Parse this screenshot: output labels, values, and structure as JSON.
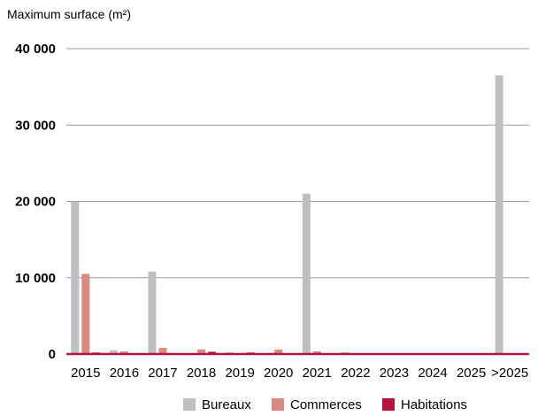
{
  "chart_data": {
    "type": "bar",
    "ylabel": "Maximum surface (m²)",
    "categories": [
      "2015",
      "2016",
      "2017",
      "2018",
      "2019",
      "2020",
      "2021",
      "2022",
      "2023",
      "2024",
      "2025",
      ">2025"
    ],
    "series": [
      {
        "name": "Bureaux",
        "color": "#bfbfc3",
        "values": [
          20000,
          500,
          10800,
          0,
          250,
          0,
          21000,
          250,
          0,
          0,
          0,
          36500
        ]
      },
      {
        "name": "Commerces",
        "color": "#d98a80",
        "values": [
          10500,
          350,
          800,
          600,
          0,
          600,
          350,
          0,
          0,
          0,
          0,
          0
        ]
      },
      {
        "name": "Habitations",
        "color": "#b5143c",
        "values": [
          200,
          0,
          0,
          300,
          200,
          0,
          0,
          0,
          0,
          0,
          0,
          0
        ]
      }
    ],
    "ylim": [
      0,
      40000
    ],
    "yticks": [
      0,
      10000,
      20000,
      30000,
      40000
    ],
    "ytick_labels": [
      "0",
      "10 000",
      "20 000",
      "30 000",
      "40 000"
    ],
    "grid": true,
    "legend_position": "bottom-center"
  }
}
